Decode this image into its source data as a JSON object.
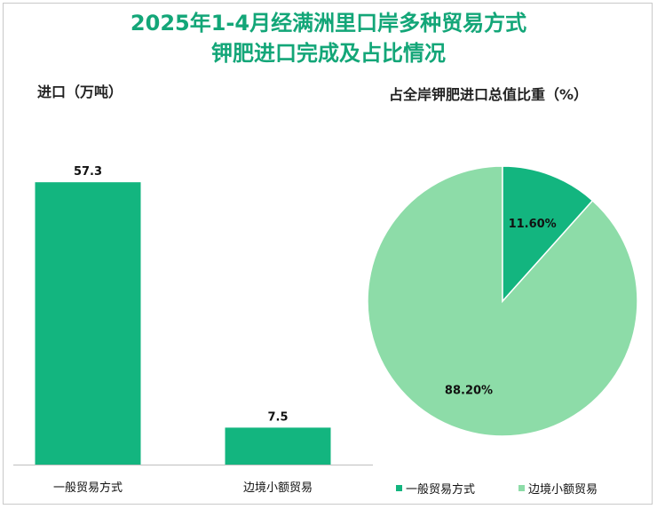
{
  "title": {
    "line1": "2025年1-4月经满洲里口岸多种贸易方式",
    "line2": "钾肥进口完成及占比情况"
  },
  "colors": {
    "title": "#13a678",
    "primary": "#13b57f",
    "secondary": "#8ddca8"
  },
  "chart_data": [
    {
      "type": "bar",
      "title": "进口（万吨）",
      "categories": [
        "一般贸易方式",
        "边境小额贸易"
      ],
      "values": [
        57.3,
        7.5
      ],
      "value_labels": [
        "57.3",
        "7.5"
      ],
      "ylim": [
        0,
        64
      ],
      "xlabel": "",
      "ylabel": ""
    },
    {
      "type": "pie",
      "title": "占全岸钾肥进口总值比重（%）",
      "labels": [
        "一般贸易方式",
        "边境小额贸易"
      ],
      "values": [
        11.6,
        88.2
      ],
      "value_labels": [
        "11.60%",
        "88.20%"
      ],
      "legend_position": "bottom"
    }
  ]
}
